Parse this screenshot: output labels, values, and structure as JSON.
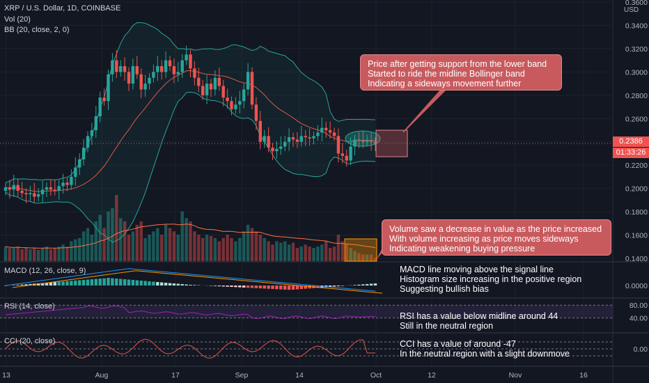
{
  "header": {
    "symbol_line": "XRP / U.S. Dollar, 1D, COINBASE",
    "vol_indicator": "Vol (20)",
    "bb_indicator": "BB (20, close, 2, 0)",
    "currency": "USD"
  },
  "price_badge": {
    "value": "0.2386",
    "countdown": "01:33:26",
    "color": "#ef5350"
  },
  "indicators": {
    "macd": "MACD (12, 26, close, 9)",
    "rsi": "RSI (14, close)",
    "cci": "CCI (20, close)"
  },
  "annotations": {
    "bb_note": [
      "Price after getting support from the lower band",
      "Started to ride the midline Bollinger band",
      "Indicating a sideways movement further"
    ],
    "vol_note": [
      "Volume saw a decrease in value as the price increased",
      "With volume increasing as price moves sideways",
      "Indicating weakening buying pressure"
    ],
    "macd_note": [
      "MACD line moving above the signal line",
      "Histogram size increasing in the positive region",
      "Suggesting bullish bias"
    ],
    "rsi_note": [
      "RSI has a value below midline around 44",
      "Still in the neutral region"
    ],
    "cci_note": [
      "CCI has a value of around -47",
      "In the neutral region with a slight downmove"
    ]
  },
  "colors": {
    "up": "#26a69a",
    "down": "#ef5350",
    "bb": "#26a69a",
    "basis": "#e0584a",
    "rsi": "#9c27b0",
    "cci": "#e0584a",
    "macd": "#2196f3",
    "signal": "#ff9800",
    "callout": "#c85a5e"
  },
  "chart_data": {
    "type": "candlestick",
    "x_ticks": [
      "13",
      "Aug",
      "17",
      "Sep",
      "14",
      "Oct",
      "12",
      "Nov",
      "16"
    ],
    "y_ticks": [
      "0.3600",
      "0.3400",
      "0.3200",
      "0.3000",
      "0.2800",
      "0.2600",
      "0.2400",
      "0.2200",
      "0.2000",
      "0.1800",
      "0.1600",
      "0.1400"
    ],
    "ylim": [
      0.14,
      0.36
    ],
    "macd_ticks": [
      "0.0000"
    ],
    "rsi_ticks": [
      "80.00",
      "40.00"
    ],
    "cci_ticks": [
      "0.00"
    ],
    "close": [
      0.201,
      0.199,
      0.203,
      0.198,
      0.196,
      0.195,
      0.196,
      0.193,
      0.195,
      0.199,
      0.201,
      0.199,
      0.198,
      0.202,
      0.205,
      0.203,
      0.21,
      0.218,
      0.225,
      0.235,
      0.245,
      0.25,
      0.262,
      0.278,
      0.275,
      0.298,
      0.31,
      0.3,
      0.305,
      0.3,
      0.29,
      0.305,
      0.298,
      0.285,
      0.29,
      0.295,
      0.3,
      0.305,
      0.3,
      0.31,
      0.305,
      0.298,
      0.3,
      0.31,
      0.315,
      0.303,
      0.295,
      0.288,
      0.28,
      0.29,
      0.285,
      0.295,
      0.288,
      0.278,
      0.275,
      0.268,
      0.272,
      0.275,
      0.285,
      0.3,
      0.272,
      0.258,
      0.24,
      0.245,
      0.235,
      0.232,
      0.234,
      0.236,
      0.24,
      0.244,
      0.242,
      0.24,
      0.245,
      0.244,
      0.243,
      0.245,
      0.248,
      0.252,
      0.25,
      0.248,
      0.245,
      0.23,
      0.228,
      0.224,
      0.236,
      0.242,
      0.241,
      0.24,
      0.241,
      0.24,
      0.2386
    ],
    "open": [
      0.198,
      0.201,
      0.199,
      0.203,
      0.198,
      0.196,
      0.195,
      0.196,
      0.193,
      0.195,
      0.199,
      0.201,
      0.199,
      0.198,
      0.202,
      0.205,
      0.203,
      0.21,
      0.218,
      0.225,
      0.235,
      0.245,
      0.25,
      0.262,
      0.278,
      0.275,
      0.298,
      0.31,
      0.3,
      0.305,
      0.3,
      0.29,
      0.305,
      0.298,
      0.285,
      0.29,
      0.295,
      0.3,
      0.305,
      0.3,
      0.31,
      0.305,
      0.298,
      0.3,
      0.31,
      0.315,
      0.303,
      0.295,
      0.288,
      0.28,
      0.29,
      0.285,
      0.295,
      0.288,
      0.278,
      0.275,
      0.268,
      0.272,
      0.275,
      0.285,
      0.3,
      0.272,
      0.258,
      0.24,
      0.245,
      0.235,
      0.232,
      0.234,
      0.236,
      0.24,
      0.244,
      0.242,
      0.24,
      0.245,
      0.244,
      0.243,
      0.245,
      0.248,
      0.252,
      0.25,
      0.248,
      0.245,
      0.23,
      0.228,
      0.224,
      0.236,
      0.242,
      0.241,
      0.24,
      0.241,
      0.24
    ],
    "volume": [
      0.22,
      0.2,
      0.2,
      0.22,
      0.18,
      0.2,
      0.18,
      0.2,
      0.17,
      0.2,
      0.22,
      0.18,
      0.2,
      0.22,
      0.25,
      0.22,
      0.3,
      0.33,
      0.35,
      0.45,
      0.5,
      0.4,
      0.6,
      0.7,
      0.5,
      0.75,
      0.8,
      1.0,
      0.65,
      0.6,
      0.4,
      0.45,
      0.55,
      0.6,
      0.35,
      0.4,
      0.45,
      0.5,
      0.4,
      0.55,
      0.5,
      0.45,
      0.4,
      0.75,
      0.65,
      0.6,
      0.45,
      0.4,
      0.35,
      0.4,
      0.38,
      0.35,
      0.3,
      0.35,
      0.4,
      0.35,
      0.3,
      0.35,
      0.45,
      0.55,
      0.5,
      0.45,
      0.4,
      0.35,
      0.3,
      0.25,
      0.3,
      0.28,
      0.3,
      0.25,
      0.28,
      0.2,
      0.22,
      0.25,
      0.22,
      0.2,
      0.22,
      0.25,
      0.3,
      0.2,
      0.22,
      0.4,
      0.3,
      0.25,
      0.2,
      0.15,
      0.12,
      0.1,
      0.1,
      0.1,
      0.05
    ],
    "rsi_level": 44,
    "cci_level": -47
  }
}
